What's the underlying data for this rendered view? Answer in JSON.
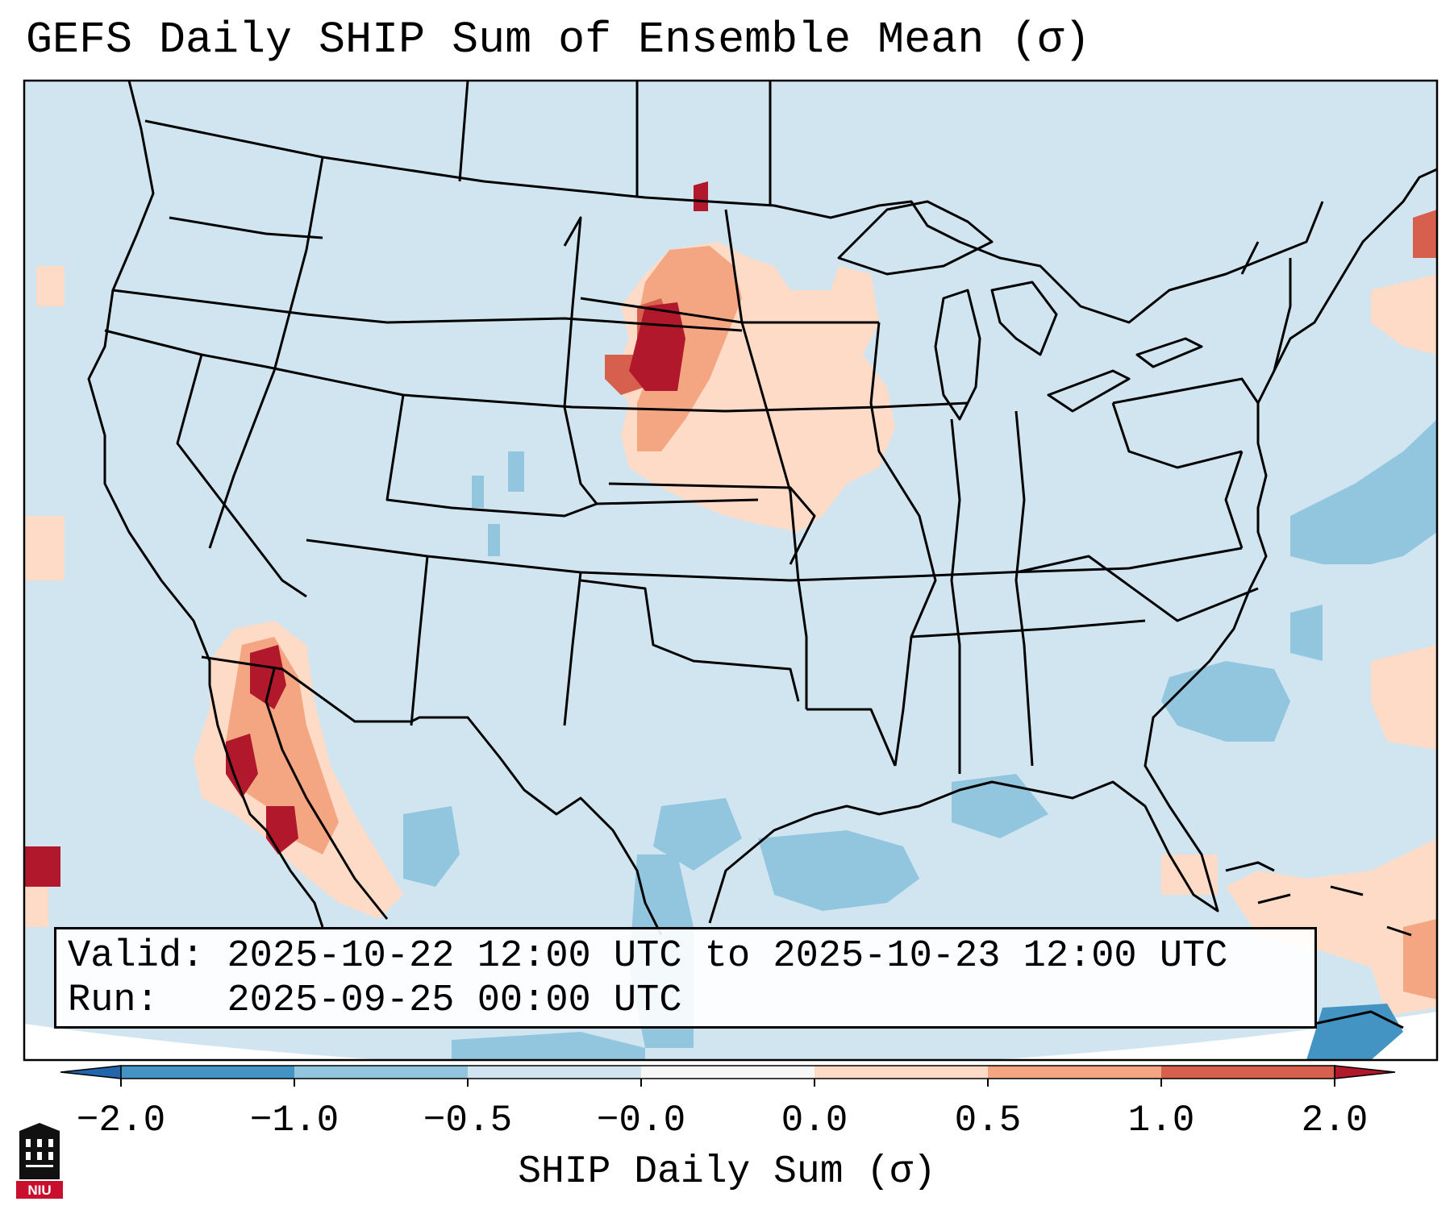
{
  "title": "GEFS Daily SHIP Sum of Ensemble Mean (σ)",
  "info": {
    "valid_label": "Valid:",
    "valid_value": "2025-10-22 12:00 UTC to 2025-10-23 12:00 UTC",
    "run_label": "Run:",
    "run_value": "2025-09-25 00:00 UTC"
  },
  "colorbar": {
    "label": "SHIP Daily Sum (σ)",
    "ticks": [
      "−2.0",
      "−1.0",
      "−0.5",
      "−0.0",
      "0.0",
      "0.5",
      "1.0",
      "2.0"
    ],
    "colors": {
      "below": "#2166ac",
      "bin_1": "#4393c3",
      "bin_2": "#92c5de",
      "bin_3": "#d1e5f0",
      "bin_4": "#f7f7f7",
      "bin_5": "#fddbc7",
      "bin_6": "#f4a582",
      "bin_7": "#d6604d",
      "above": "#b2182b"
    }
  },
  "logo": {
    "text": "NIU",
    "name": "niu-logo"
  },
  "map": {
    "background_color": "#d1e5f0",
    "outside_color": "#ffffff"
  }
}
